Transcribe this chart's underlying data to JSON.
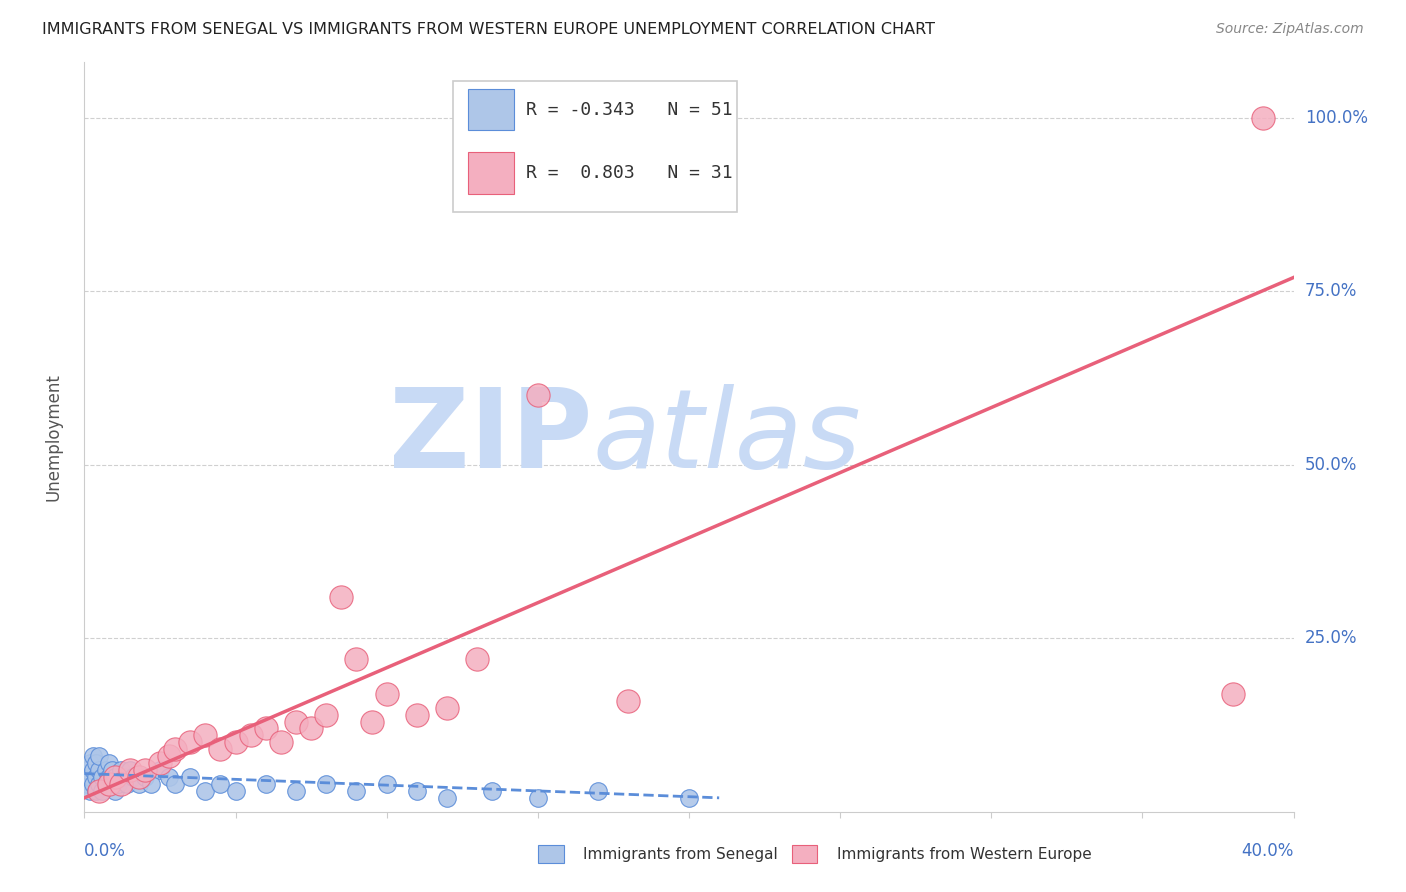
{
  "title": "IMMIGRANTS FROM SENEGAL VS IMMIGRANTS FROM WESTERN EUROPE UNEMPLOYMENT CORRELATION CHART",
  "source": "Source: ZipAtlas.com",
  "ylabel": "Unemployment",
  "xlim": [
    0.0,
    0.4
  ],
  "ylim": [
    0.0,
    1.08
  ],
  "ytick_vals": [
    0.25,
    0.5,
    0.75,
    1.0
  ],
  "ytick_labels": [
    "25.0%",
    "50.0%",
    "75.0%",
    "100.0%"
  ],
  "legend1_r": "-0.343",
  "legend1_n": "51",
  "legend2_r": "0.803",
  "legend2_n": "31",
  "series1_color": "#aec6e8",
  "series2_color": "#f4afc0",
  "line1_color": "#5b8dd9",
  "line2_color": "#e8607a",
  "watermark_zip": "ZIP",
  "watermark_atlas": "atlas",
  "watermark_color": "#c8daf5",
  "senegal_points_x": [
    0.001,
    0.001,
    0.002,
    0.002,
    0.002,
    0.003,
    0.003,
    0.003,
    0.004,
    0.004,
    0.004,
    0.005,
    0.005,
    0.005,
    0.006,
    0.006,
    0.007,
    0.007,
    0.008,
    0.008,
    0.009,
    0.009,
    0.01,
    0.01,
    0.011,
    0.012,
    0.013,
    0.014,
    0.015,
    0.016,
    0.018,
    0.02,
    0.022,
    0.025,
    0.028,
    0.03,
    0.035,
    0.04,
    0.045,
    0.05,
    0.06,
    0.07,
    0.08,
    0.09,
    0.1,
    0.11,
    0.12,
    0.135,
    0.15,
    0.17,
    0.2
  ],
  "senegal_points_y": [
    0.04,
    0.06,
    0.03,
    0.05,
    0.07,
    0.04,
    0.06,
    0.08,
    0.03,
    0.05,
    0.07,
    0.04,
    0.06,
    0.08,
    0.03,
    0.05,
    0.04,
    0.06,
    0.05,
    0.07,
    0.04,
    0.06,
    0.03,
    0.05,
    0.04,
    0.06,
    0.05,
    0.04,
    0.06,
    0.05,
    0.04,
    0.05,
    0.04,
    0.06,
    0.05,
    0.04,
    0.05,
    0.03,
    0.04,
    0.03,
    0.04,
    0.03,
    0.04,
    0.03,
    0.04,
    0.03,
    0.02,
    0.03,
    0.02,
    0.03,
    0.02
  ],
  "western_europe_points_x": [
    0.005,
    0.008,
    0.01,
    0.012,
    0.015,
    0.018,
    0.02,
    0.025,
    0.028,
    0.03,
    0.035,
    0.04,
    0.045,
    0.05,
    0.055,
    0.06,
    0.065,
    0.07,
    0.075,
    0.08,
    0.085,
    0.09,
    0.095,
    0.1,
    0.11,
    0.12,
    0.13,
    0.15,
    0.18,
    0.38,
    0.39
  ],
  "western_europe_points_y": [
    0.03,
    0.04,
    0.05,
    0.04,
    0.06,
    0.05,
    0.06,
    0.07,
    0.08,
    0.09,
    0.1,
    0.11,
    0.09,
    0.1,
    0.11,
    0.12,
    0.1,
    0.13,
    0.12,
    0.14,
    0.31,
    0.22,
    0.13,
    0.17,
    0.14,
    0.15,
    0.22,
    0.6,
    0.16,
    0.17,
    1.0
  ],
  "trend1_x": [
    0.0,
    0.21
  ],
  "trend1_y": [
    0.055,
    0.02
  ],
  "trend2_x": [
    0.0,
    0.4
  ],
  "trend2_y": [
    0.02,
    0.77
  ]
}
